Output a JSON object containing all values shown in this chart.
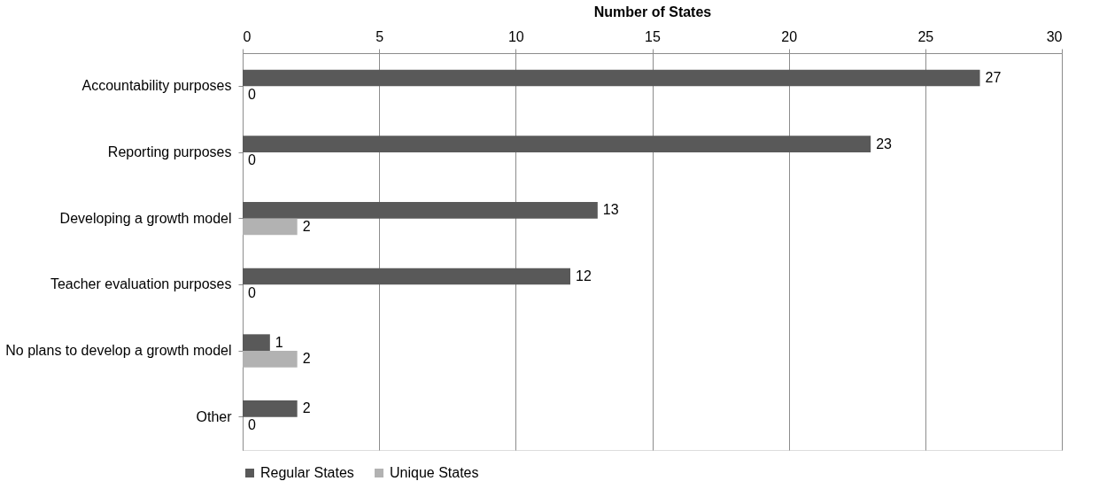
{
  "chart_data": {
    "type": "bar",
    "orientation": "horizontal",
    "xlabel": "Number of States",
    "categories": [
      "Accountability purposes",
      "Reporting purposes",
      "Developing a growth model",
      "Teacher evaluation purposes",
      "No plans to develop a growth model",
      "Other"
    ],
    "series": [
      {
        "name": "Regular States",
        "color": "#595959",
        "values": [
          27,
          23,
          13,
          12,
          1,
          2
        ]
      },
      {
        "name": "Unique States",
        "color": "#b2b2b2",
        "values": [
          0,
          0,
          2,
          0,
          2,
          0
        ]
      }
    ],
    "xlim": [
      0,
      30
    ],
    "xticks": [
      0,
      5,
      10,
      15,
      20,
      25,
      30
    ],
    "grid": "x",
    "legend": "bottom",
    "data_labels": true
  }
}
